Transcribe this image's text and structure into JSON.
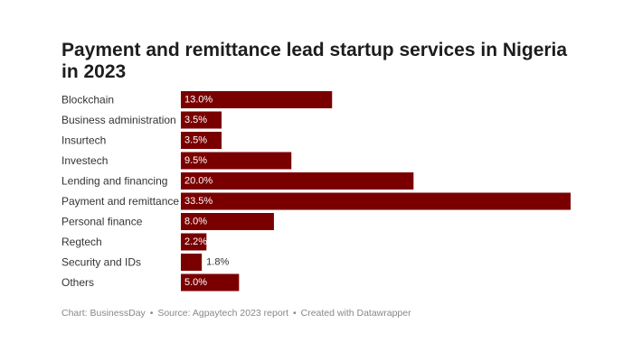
{
  "chart_data": {
    "type": "bar",
    "orientation": "horizontal",
    "title": "Payment and remittance lead startup services in Nigeria in 2023",
    "categories": [
      "Blockchain",
      "Business administration",
      "Insurtech",
      "Investech",
      "Lending and financing",
      "Payment and remittance",
      "Personal finance",
      "Regtech",
      "Security and IDs",
      "Others"
    ],
    "values": [
      13.0,
      3.5,
      3.5,
      9.5,
      20.0,
      33.5,
      8.0,
      2.2,
      1.8,
      5.0
    ],
    "value_labels": [
      "13.0%",
      "3.5%",
      "3.5%",
      "9.5%",
      "20.0%",
      "33.5%",
      "8.0%",
      "2.2%",
      "1.8%",
      "5.0%"
    ],
    "xlim": [
      0,
      33.5
    ],
    "xlabel": "",
    "ylabel": "",
    "bar_color": "#7a0000",
    "grid": false
  },
  "footer": {
    "chart_credit": "Chart: BusinessDay",
    "source": "Source: Agpaytech 2023 report",
    "created_with": "Created with Datawrapper",
    "separator": "•"
  }
}
